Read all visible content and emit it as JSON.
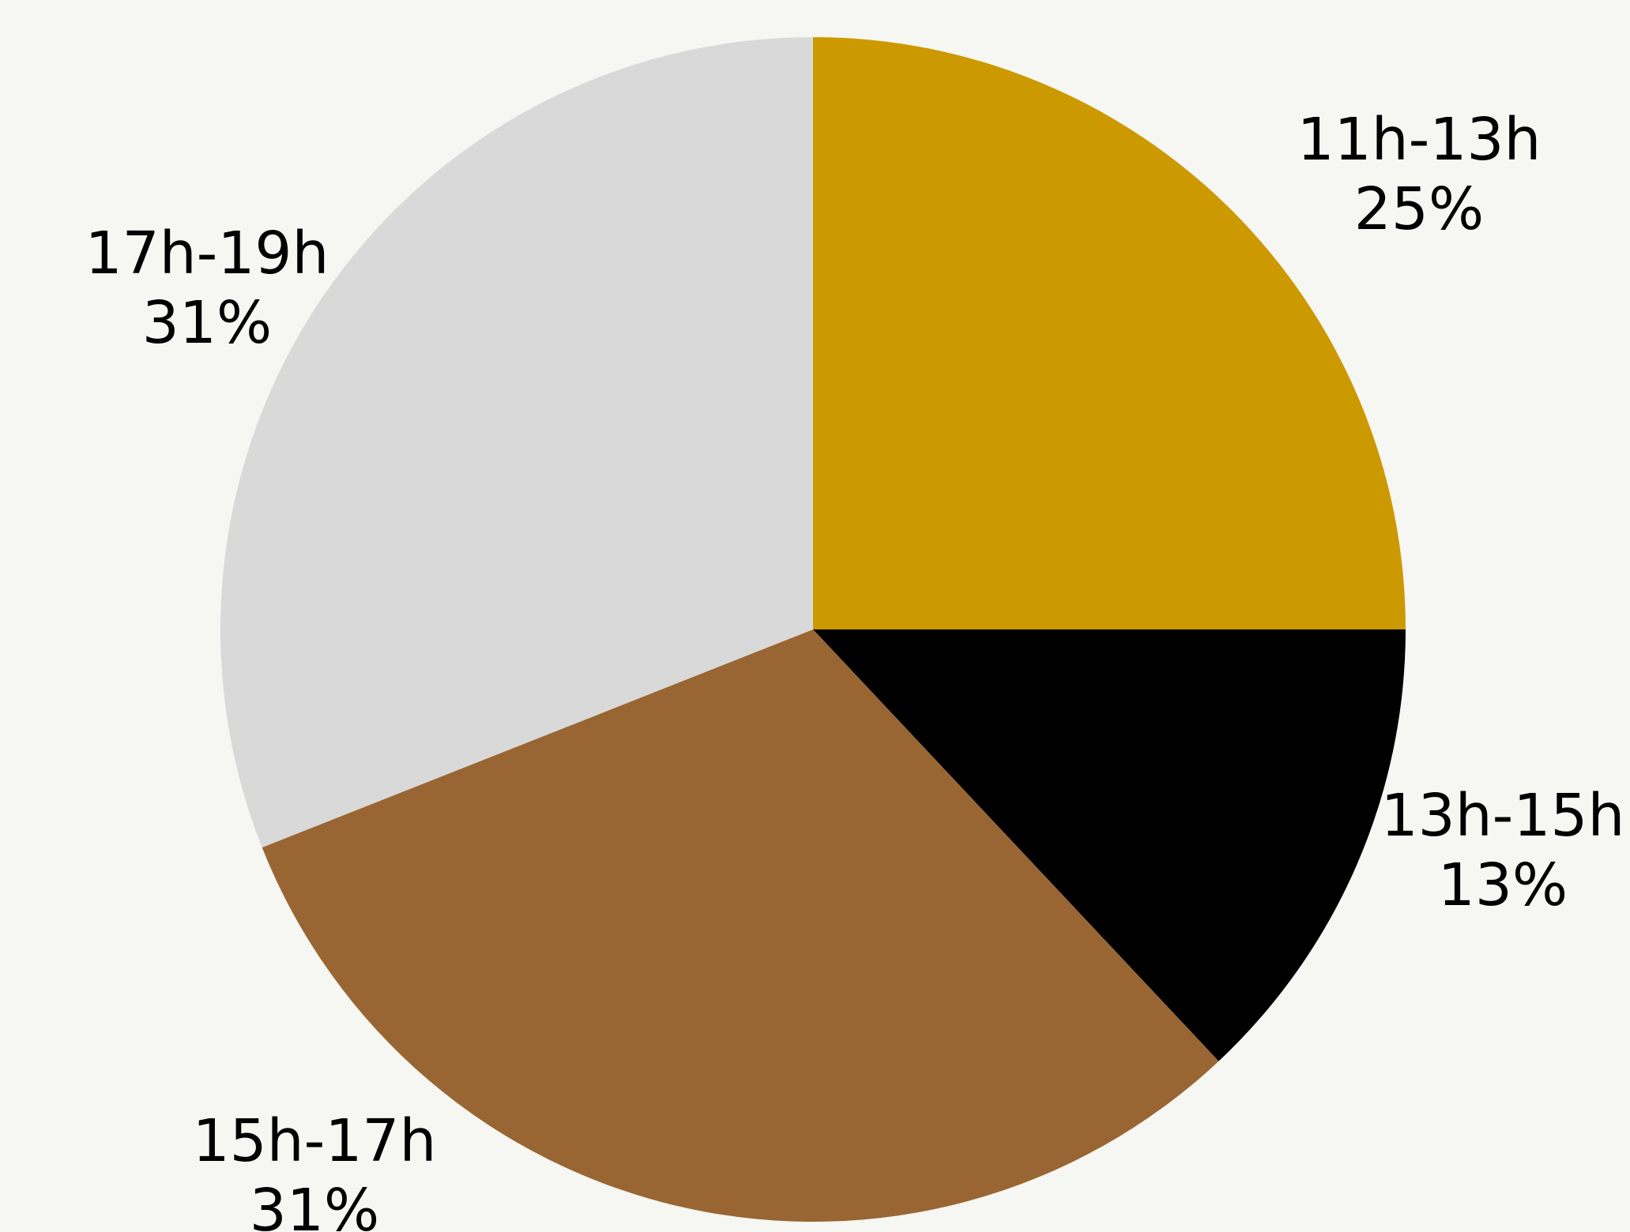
{
  "background_color": "#f6f7f2",
  "chart_data": {
    "type": "pie",
    "title": "",
    "start_angle_deg": 0,
    "direction": "clockwise",
    "legend": "none",
    "slices": [
      {
        "label": "11h-13h",
        "value_label": "25%",
        "value": 25,
        "color": "#cc9900"
      },
      {
        "label": "13h-15h",
        "value_label": "13%",
        "value": 13,
        "color": "#000000"
      },
      {
        "label": "15h-17h",
        "value_label": "31%",
        "value": 31,
        "color": "#996633"
      },
      {
        "label": "17h-19h",
        "value_label": "31%",
        "value": 31,
        "color": "#d9d9d9"
      }
    ]
  }
}
